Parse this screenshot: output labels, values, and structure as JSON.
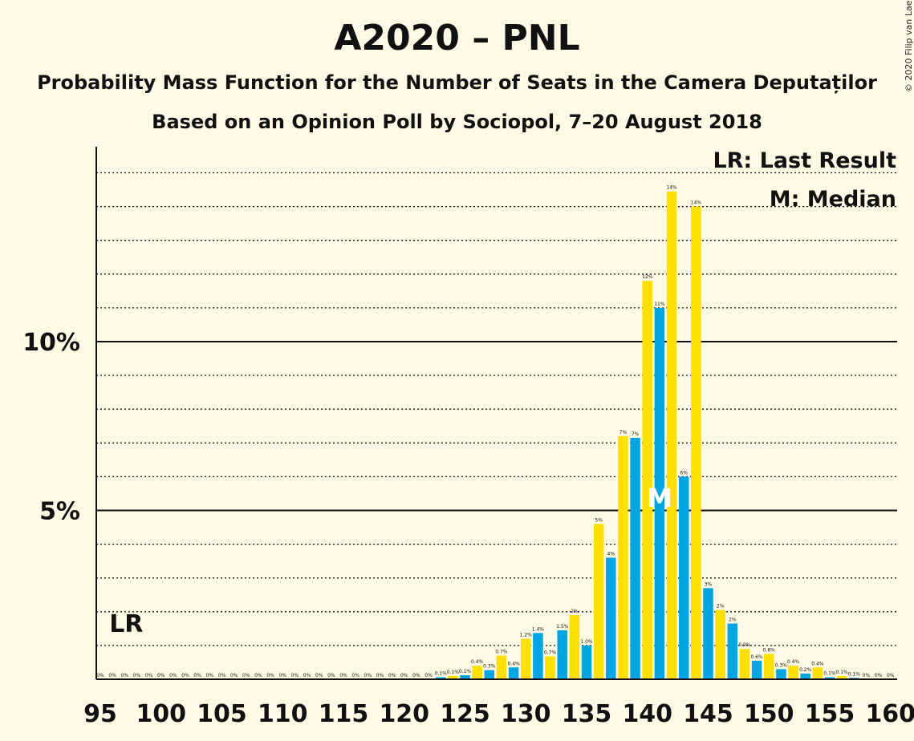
{
  "header": {
    "title": "A2020 – PNL",
    "subtitle_line1": "Probability Mass Function for the Number of Seats in the Camera Deputaților",
    "subtitle_line2": "Based on an Opinion Poll by Sociopol, 7–20 August 2018",
    "copyright": "© 2020 Filip van Laenen"
  },
  "legend": {
    "last_result": "LR: Last Result",
    "median": "M: Median"
  },
  "colors": {
    "background": "#fffae6",
    "series_a": "#00a5e2",
    "series_b": "#ffe000"
  },
  "chart_data": {
    "type": "bar",
    "x": [
      95,
      96,
      97,
      98,
      99,
      100,
      101,
      102,
      103,
      104,
      105,
      106,
      107,
      108,
      109,
      110,
      111,
      112,
      113,
      114,
      115,
      116,
      117,
      118,
      119,
      120,
      121,
      122,
      123,
      124,
      125,
      126,
      127,
      128,
      129,
      130,
      131,
      132,
      133,
      134,
      135,
      136,
      137,
      138,
      139,
      140,
      141,
      142,
      143,
      144,
      145,
      146,
      147,
      148,
      149,
      150,
      151,
      152,
      153,
      154,
      155,
      156,
      157,
      158,
      159,
      160
    ],
    "values": [
      0,
      0,
      0,
      0,
      0,
      0,
      0,
      0,
      0,
      0,
      0,
      0,
      0,
      0,
      0,
      0,
      0,
      0,
      0,
      0,
      0,
      0,
      0,
      0,
      0,
      0,
      0,
      0,
      0.1,
      0.1,
      0.1,
      0.4,
      0.3,
      0.7,
      0.4,
      1.2,
      1.4,
      0.7,
      1.5,
      2,
      1.0,
      5,
      4,
      7,
      7,
      12,
      11,
      14,
      6,
      14,
      3,
      2,
      2,
      0.9,
      0.6,
      0.8,
      0.3,
      0.4,
      0.2,
      0.4,
      0.1,
      0.1,
      0.1,
      0,
      0,
      0
    ],
    "bar_values_pct": [
      0,
      0,
      0,
      0,
      0,
      0,
      0,
      0,
      0,
      0,
      0,
      0,
      0,
      0,
      0,
      0,
      0,
      0,
      0,
      0,
      0,
      0,
      0,
      0,
      0,
      0,
      0,
      0,
      0.06,
      0.1,
      0.12,
      0.4,
      0.27,
      0.7,
      0.35,
      1.2,
      1.37,
      0.68,
      1.45,
      1.9,
      1.0,
      4.6,
      3.6,
      7.2,
      7.15,
      11.8,
      11.0,
      14.45,
      6.0,
      14.0,
      2.7,
      2.05,
      1.65,
      0.9,
      0.55,
      0.75,
      0.3,
      0.4,
      0.17,
      0.35,
      0.06,
      0.1,
      0.04,
      0,
      0,
      0
    ],
    "labels": [
      "0%",
      "0%",
      "0%",
      "0%",
      "0%",
      "0%",
      "0%",
      "0%",
      "0%",
      "0%",
      "0%",
      "0%",
      "0%",
      "0%",
      "0%",
      "0%",
      "0%",
      "0%",
      "0%",
      "0%",
      "0%",
      "0%",
      "0%",
      "0%",
      "0%",
      "0%",
      "0%",
      "0%",
      "0.1%",
      "0.1%",
      "0.1%",
      "0.4%",
      "0.3%",
      "0.7%",
      "0.4%",
      "1.2%",
      "1.4%",
      "0.7%",
      "1.5%",
      "2%",
      "1.0%",
      "5%",
      "4%",
      "7%",
      "7%",
      "12%",
      "11%",
      "14%",
      "6%",
      "14%",
      "3%",
      "2%",
      "2%",
      "0.9%",
      "0.6%",
      "0.8%",
      "0.3%",
      "0.4%",
      "0.2%",
      "0.4%",
      "0.1%",
      "0.1%",
      "0.1%",
      "0%",
      "0%",
      "0%"
    ],
    "xticks": [
      95,
      100,
      105,
      110,
      115,
      120,
      125,
      130,
      135,
      140,
      145,
      150,
      155,
      160
    ],
    "yticks": [
      "5%",
      "10%"
    ],
    "ylim": [
      0,
      15.8
    ],
    "last_result": {
      "seat": 97,
      "label": "LR"
    },
    "median": {
      "seat": 141,
      "label": "M"
    },
    "grid": "dotted every 1%, solid at 5% and 10%"
  }
}
